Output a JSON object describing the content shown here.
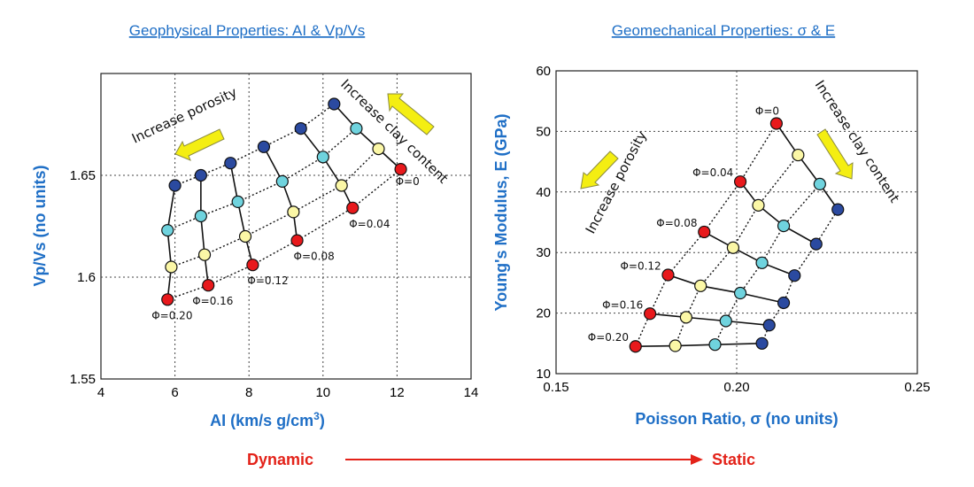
{
  "flow": {
    "from": "Dynamic",
    "to": "Static",
    "arrow_color": "#e32219"
  },
  "colors": {
    "title": "#1f6fc6",
    "red": "#e8191c",
    "yellow": "#fbf7a6",
    "cyan": "#6fd3de",
    "navy": "#2b4aa0",
    "annotation_arrow": "#f4ee12"
  },
  "chart_data": [
    {
      "type": "scatter",
      "title": "Geophysical Properties: AI & Vp/Vs",
      "xlabel": "AI (km/s g/cm3)",
      "xlabel_main": "AI (km/s g/cm",
      "xlabel_sup": "3",
      "xlabel_tail": ")",
      "ylabel": "Vp/Vs (no units)",
      "xlim": [
        4,
        14
      ],
      "ylim": [
        1.55,
        1.7
      ],
      "xticks": [
        4,
        6,
        8,
        10,
        12,
        14
      ],
      "yticks": [
        1.55,
        1.6,
        1.65
      ],
      "grid": true,
      "point_colors": [
        "red",
        "yellow",
        "cyan",
        "navy"
      ],
      "series": [
        {
          "name": "Φ=0.20",
          "points": [
            [
              5.8,
              1.589
            ],
            [
              5.9,
              1.605
            ],
            [
              5.8,
              1.623
            ],
            [
              6.0,
              1.645
            ]
          ]
        },
        {
          "name": "Φ=0.16",
          "points": [
            [
              6.9,
              1.596
            ],
            [
              6.8,
              1.611
            ],
            [
              6.7,
              1.63
            ],
            [
              6.7,
              1.65
            ]
          ]
        },
        {
          "name": "Φ=0.12",
          "points": [
            [
              8.1,
              1.606
            ],
            [
              7.9,
              1.62
            ],
            [
              7.7,
              1.637
            ],
            [
              7.5,
              1.656
            ]
          ]
        },
        {
          "name": "Φ=0.08",
          "points": [
            [
              9.3,
              1.618
            ],
            [
              9.2,
              1.632
            ],
            [
              8.9,
              1.647
            ],
            [
              8.4,
              1.664
            ]
          ]
        },
        {
          "name": "Φ=0.04",
          "points": [
            [
              10.8,
              1.634
            ],
            [
              10.5,
              1.645
            ],
            [
              10.0,
              1.659
            ],
            [
              9.4,
              1.673
            ]
          ]
        },
        {
          "name": "Φ=0",
          "points": [
            [
              12.1,
              1.653
            ],
            [
              11.5,
              1.663
            ],
            [
              10.9,
              1.673
            ],
            [
              10.3,
              1.685
            ]
          ]
        }
      ],
      "annotations": [
        "Increase porosity",
        "Increase clay content"
      ]
    },
    {
      "type": "scatter",
      "title": "Geomechanical Properties: σ & E",
      "xlabel": "Poisson Ratio, σ (no units)",
      "ylabel": "Young's Modulus, E (GPa)",
      "xlim": [
        0.15,
        0.25
      ],
      "ylim": [
        10,
        60
      ],
      "xticks": [
        0.15,
        0.2,
        0.25
      ],
      "yticks": [
        10,
        20,
        30,
        40,
        50,
        60
      ],
      "grid": true,
      "point_colors": [
        "red",
        "yellow",
        "cyan",
        "navy"
      ],
      "series": [
        {
          "name": "Φ=0.20",
          "points": [
            [
              0.172,
              14.5
            ],
            [
              0.183,
              14.6
            ],
            [
              0.194,
              14.8
            ],
            [
              0.207,
              15.0
            ]
          ]
        },
        {
          "name": "Φ=0.16",
          "points": [
            [
              0.176,
              19.9
            ],
            [
              0.186,
              19.3
            ],
            [
              0.197,
              18.7
            ],
            [
              0.209,
              18.0
            ]
          ]
        },
        {
          "name": "Φ=0.12",
          "points": [
            [
              0.181,
              26.3
            ],
            [
              0.19,
              24.5
            ],
            [
              0.201,
              23.3
            ],
            [
              0.213,
              21.7
            ]
          ]
        },
        {
          "name": "Φ=0.08",
          "points": [
            [
              0.191,
              33.4
            ],
            [
              0.199,
              30.8
            ],
            [
              0.207,
              28.3
            ],
            [
              0.216,
              26.2
            ]
          ]
        },
        {
          "name": "Φ=0.04",
          "points": [
            [
              0.201,
              41.7
            ],
            [
              0.206,
              37.8
            ],
            [
              0.213,
              34.4
            ],
            [
              0.222,
              31.4
            ]
          ]
        },
        {
          "name": "Φ=0",
          "points": [
            [
              0.211,
              51.3
            ],
            [
              0.217,
              46.1
            ],
            [
              0.223,
              41.3
            ],
            [
              0.228,
              37.1
            ]
          ]
        }
      ],
      "annotations": [
        "Increase porosity",
        "Increase clay content"
      ]
    }
  ]
}
